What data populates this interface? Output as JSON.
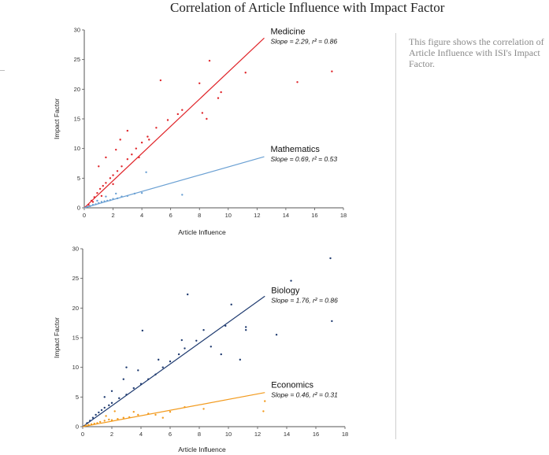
{
  "page": {
    "title": "Correlation of Article Influence with Impact Factor",
    "caption": "This figure shows the correlation of Article Influence with ISI's Impact Factor."
  },
  "chart_data": [
    {
      "type": "scatter",
      "xlabel": "Article Influence",
      "ylabel": "Impact Factor",
      "xlim": [
        0,
        18
      ],
      "ylim": [
        0,
        30
      ],
      "xticks": [
        "0",
        "2",
        "4",
        "6",
        "8",
        "10",
        "12",
        "14",
        "16",
        "18"
      ],
      "yticks": [
        "0",
        "5",
        "10",
        "15",
        "20",
        "25",
        "30"
      ],
      "grid": false,
      "series": [
        {
          "name": "Medicine",
          "stat": "Slope = 2.29, r² = 0.86",
          "color": "#e0262b",
          "slope": 2.29,
          "fit_x": [
            0,
            12.5
          ],
          "points": [
            [
              0.3,
              0.5
            ],
            [
              0.5,
              1.2
            ],
            [
              0.7,
              1.8
            ],
            [
              0.9,
              2.5
            ],
            [
              1.1,
              3.2
            ],
            [
              1.3,
              3.7
            ],
            [
              1.5,
              4.2
            ],
            [
              1.8,
              5.0
            ],
            [
              2.0,
              5.5
            ],
            [
              2.3,
              6.2
            ],
            [
              2.6,
              7.0
            ],
            [
              3.0,
              8.2
            ],
            [
              3.3,
              9.0
            ],
            [
              3.6,
              10.0
            ],
            [
              4.0,
              11.0
            ],
            [
              4.4,
              12.0
            ],
            [
              5.0,
              13.5
            ],
            [
              5.8,
              14.8
            ],
            [
              6.5,
              15.8
            ],
            [
              6.8,
              16.5
            ],
            [
              5.3,
              21.5
            ],
            [
              8.0,
              21.0
            ],
            [
              8.7,
              24.8
            ],
            [
              9.5,
              19.5
            ],
            [
              9.3,
              18.5
            ],
            [
              8.2,
              16.0
            ],
            [
              8.5,
              15.0
            ],
            [
              11.2,
              22.8
            ],
            [
              14.8,
              21.2
            ],
            [
              17.2,
              23.0
            ],
            [
              3.0,
              13.0
            ],
            [
              2.5,
              11.5
            ],
            [
              1.5,
              8.5
            ],
            [
              1.0,
              7.0
            ],
            [
              4.5,
              11.5
            ],
            [
              2.2,
              9.8
            ],
            [
              3.8,
              8.5
            ],
            [
              2.0,
              4.0
            ],
            [
              1.2,
              2.0
            ],
            [
              0.6,
              1.0
            ]
          ]
        },
        {
          "name": "Mathematics",
          "stat": "Slope = 0.69, r² = 0.53",
          "color": "#6aa0d3",
          "slope": 0.69,
          "fit_x": [
            0,
            12.5
          ],
          "points": [
            [
              0.2,
              0.2
            ],
            [
              0.4,
              0.3
            ],
            [
              0.6,
              0.5
            ],
            [
              0.8,
              0.6
            ],
            [
              1.0,
              0.8
            ],
            [
              1.2,
              1.0
            ],
            [
              1.4,
              1.1
            ],
            [
              1.6,
              1.2
            ],
            [
              1.8,
              1.3
            ],
            [
              2.0,
              1.5
            ],
            [
              2.3,
              1.6
            ],
            [
              2.6,
              1.9
            ],
            [
              3.0,
              2.0
            ],
            [
              3.5,
              2.4
            ],
            [
              4.0,
              2.5
            ],
            [
              4.3,
              6.0
            ],
            [
              6.8,
              2.2
            ],
            [
              2.2,
              2.4
            ],
            [
              1.5,
              1.9
            ],
            [
              0.9,
              1.2
            ]
          ]
        }
      ]
    },
    {
      "type": "scatter",
      "xlabel": "Article Influence",
      "ylabel": "Impact Factor",
      "xlim": [
        0,
        18
      ],
      "ylim": [
        0,
        30
      ],
      "xticks": [
        "0",
        "2",
        "4",
        "6",
        "8",
        "10",
        "12",
        "14",
        "16",
        "18"
      ],
      "yticks": [
        "0",
        "5",
        "10",
        "15",
        "20",
        "25",
        "30"
      ],
      "grid": false,
      "series": [
        {
          "name": "Biology",
          "stat": "Slope = 1.76, r² = 0.86",
          "color": "#1f3b70",
          "slope": 1.76,
          "fit_x": [
            0,
            12.5
          ],
          "points": [
            [
              0.3,
              0.6
            ],
            [
              0.5,
              1.0
            ],
            [
              0.7,
              1.5
            ],
            [
              0.9,
              2.0
            ],
            [
              1.1,
              2.4
            ],
            [
              1.3,
              2.8
            ],
            [
              1.5,
              3.2
            ],
            [
              1.8,
              3.6
            ],
            [
              2.0,
              4.0
            ],
            [
              2.5,
              4.8
            ],
            [
              3.0,
              5.4
            ],
            [
              3.5,
              6.5
            ],
            [
              4.0,
              7.2
            ],
            [
              4.5,
              8.0
            ],
            [
              5.0,
              8.8
            ],
            [
              5.5,
              10.0
            ],
            [
              6.0,
              11.0
            ],
            [
              6.6,
              12.2
            ],
            [
              7.0,
              13.2
            ],
            [
              7.2,
              22.3
            ],
            [
              7.8,
              14.5
            ],
            [
              8.3,
              16.3
            ],
            [
              8.8,
              13.5
            ],
            [
              9.5,
              12.2
            ],
            [
              10.2,
              20.6
            ],
            [
              9.8,
              17.0
            ],
            [
              10.8,
              11.3
            ],
            [
              11.2,
              16.8
            ],
            [
              11.2,
              16.3
            ],
            [
              13.3,
              15.5
            ],
            [
              14.3,
              24.6
            ],
            [
              17.0,
              28.4
            ],
            [
              17.1,
              17.8
            ],
            [
              4.1,
              16.2
            ],
            [
              3.0,
              10.0
            ],
            [
              2.8,
              8.0
            ],
            [
              2.0,
              6.0
            ],
            [
              1.5,
              5.0
            ],
            [
              3.8,
              9.5
            ],
            [
              5.2,
              11.3
            ],
            [
              6.8,
              14.6
            ]
          ]
        },
        {
          "name": "Economics",
          "stat": "Slope = 0.46, r² = 0.31",
          "color": "#f29a1d",
          "slope": 0.46,
          "fit_x": [
            0,
            12.5
          ],
          "points": [
            [
              0.2,
              0.2
            ],
            [
              0.4,
              0.3
            ],
            [
              0.6,
              0.4
            ],
            [
              0.8,
              0.5
            ],
            [
              1.0,
              0.6
            ],
            [
              1.2,
              0.8
            ],
            [
              1.5,
              1.0
            ],
            [
              1.8,
              1.2
            ],
            [
              2.0,
              1.1
            ],
            [
              2.4,
              1.3
            ],
            [
              2.8,
              1.5
            ],
            [
              3.2,
              1.6
            ],
            [
              3.8,
              2.0
            ],
            [
              4.5,
              2.2
            ],
            [
              5.0,
              2.0
            ],
            [
              5.5,
              1.5
            ],
            [
              6.0,
              2.5
            ],
            [
              7.0,
              3.3
            ],
            [
              8.3,
              3.0
            ],
            [
              12.5,
              4.3
            ],
            [
              12.4,
              2.6
            ],
            [
              3.5,
              2.5
            ],
            [
              2.2,
              2.6
            ],
            [
              1.6,
              1.8
            ]
          ]
        }
      ]
    }
  ]
}
